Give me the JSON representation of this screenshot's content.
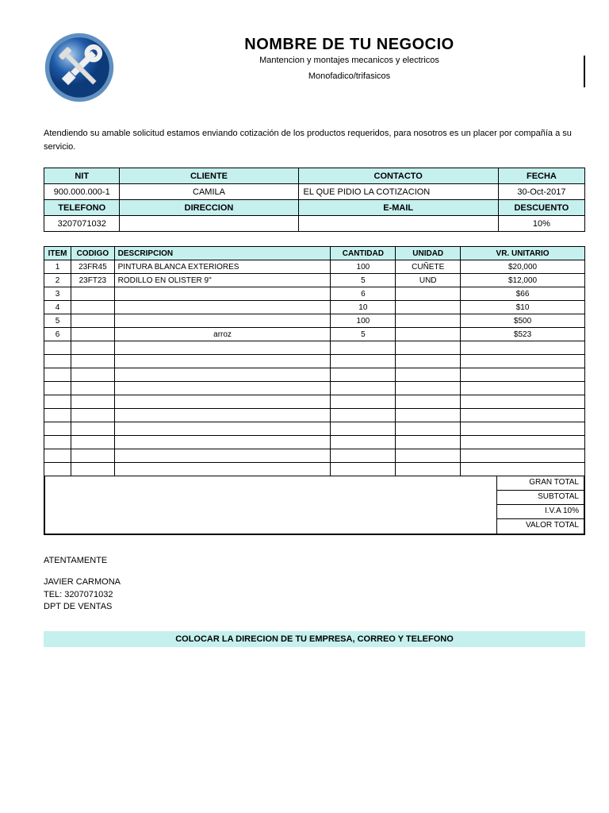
{
  "colors": {
    "header_bg": "#c5f0ee",
    "border": "#000000",
    "page_bg": "#ffffff",
    "logo_outer": "#4a7db8",
    "logo_inner": "#1e5aa8",
    "logo_highlight": "#a8d0f0"
  },
  "header": {
    "business_name": "NOMBRE DE TU NEGOCIO",
    "subtitle1": "Mantencion y montajes mecanicos y electricos",
    "subtitle2": "Monofadico/trifasicos"
  },
  "intro_text": "Atendiendo su amable solicitud estamos enviando cotización de los productos requeridos, para nosotros es un placer por compañía a su servicio.",
  "info": {
    "labels_row1": {
      "nit": "NIT",
      "cliente": "CLIENTE",
      "contacto": "CONTACTO",
      "fecha": "FECHA"
    },
    "values_row1": {
      "nit": "900.000.000-1",
      "cliente": "CAMILA",
      "contacto": "EL QUE PIDIO LA COTIZACION",
      "fecha": "30-Oct-2017"
    },
    "labels_row2": {
      "telefono": "TELEFONO",
      "direccion": "DIRECCION",
      "email": "E-MAIL",
      "descuento": "DESCUENTO"
    },
    "values_row2": {
      "telefono": "3207071032",
      "direccion": "",
      "email": "",
      "descuento": "10%"
    }
  },
  "items_header": {
    "item": "ITEM",
    "codigo": "CODIGO",
    "descripcion": "DESCRIPCION",
    "cantidad": "CANTIDAD",
    "unidad": "UNIDAD",
    "unitario": "VR. UNITARIO"
  },
  "items": [
    {
      "item": "1",
      "codigo": "23FR45",
      "descripcion": "PINTURA BLANCA EXTERIORES",
      "cantidad": "100",
      "unidad": "CUÑETE",
      "unitario": "$20,000"
    },
    {
      "item": "2",
      "codigo": "23FT23",
      "descripcion": "RODILLO EN OLISTER 9\"",
      "cantidad": "5",
      "unidad": "UND",
      "unitario": "$12,000"
    },
    {
      "item": "3",
      "codigo": "",
      "descripcion": "",
      "cantidad": "6",
      "unidad": "",
      "unitario": "$66"
    },
    {
      "item": "4",
      "codigo": "",
      "descripcion": "",
      "cantidad": "10",
      "unidad": "",
      "unitario": "$10"
    },
    {
      "item": "5",
      "codigo": "",
      "descripcion": "",
      "cantidad": "100",
      "unidad": "",
      "unitario": "$500"
    },
    {
      "item": "6",
      "codigo": "",
      "descripcion": "arroz",
      "cantidad": "5",
      "unidad": "",
      "unitario": "$523"
    },
    {
      "item": "",
      "codigo": "",
      "descripcion": "",
      "cantidad": "",
      "unidad": "",
      "unitario": ""
    },
    {
      "item": "",
      "codigo": "",
      "descripcion": "",
      "cantidad": "",
      "unidad": "",
      "unitario": ""
    },
    {
      "item": "",
      "codigo": "",
      "descripcion": "",
      "cantidad": "",
      "unidad": "",
      "unitario": ""
    },
    {
      "item": "",
      "codigo": "",
      "descripcion": "",
      "cantidad": "",
      "unidad": "",
      "unitario": ""
    },
    {
      "item": "",
      "codigo": "",
      "descripcion": "",
      "cantidad": "",
      "unidad": "",
      "unitario": ""
    },
    {
      "item": "",
      "codigo": "",
      "descripcion": "",
      "cantidad": "",
      "unidad": "",
      "unitario": ""
    },
    {
      "item": "",
      "codigo": "",
      "descripcion": "",
      "cantidad": "",
      "unidad": "",
      "unitario": ""
    },
    {
      "item": "",
      "codigo": "",
      "descripcion": "",
      "cantidad": "",
      "unidad": "",
      "unitario": ""
    },
    {
      "item": "",
      "codigo": "",
      "descripcion": "",
      "cantidad": "",
      "unidad": "",
      "unitario": ""
    },
    {
      "item": "",
      "codigo": "",
      "descripcion": "",
      "cantidad": "",
      "unidad": "",
      "unitario": ""
    }
  ],
  "totals": {
    "gran_total": "GRAN TOTAL",
    "subtotal": "SUBTOTAL",
    "iva": "I.V.A 10%",
    "valor_total": "VALOR TOTAL"
  },
  "signature": {
    "atentamente": "ATENTAMENTE",
    "name": "JAVIER CARMONA",
    "tel": "TEL: 3207071032",
    "dept": "DPT DE VENTAS"
  },
  "footer": "COLOCAR LA DIRECION DE TU EMPRESA, CORREO Y TELEFONO"
}
